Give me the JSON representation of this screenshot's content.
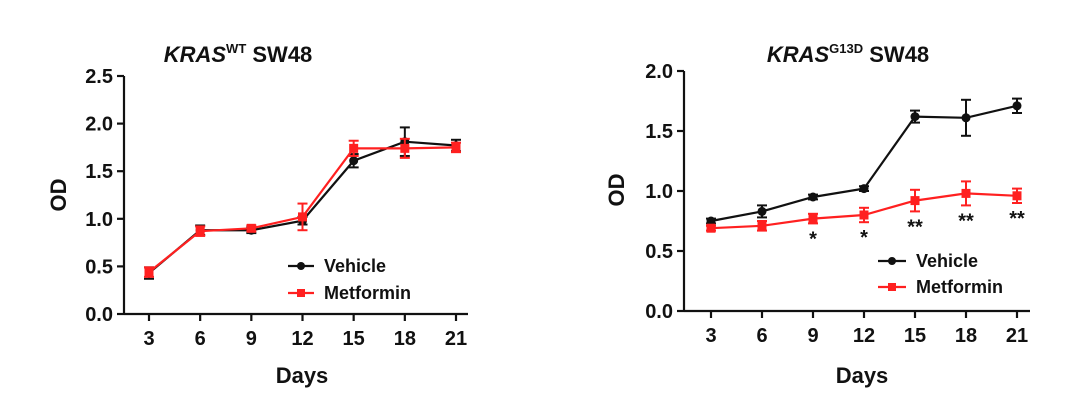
{
  "chart_data": [
    {
      "type": "line",
      "title": {
        "main": "KRAS",
        "sup": "WT",
        "rest": " SW48"
      },
      "xlabel": "Days",
      "ylabel": "OD",
      "x": [
        3,
        6,
        9,
        12,
        15,
        18,
        21
      ],
      "xticks": [
        "3",
        "6",
        "9",
        "12",
        "15",
        "18",
        "21"
      ],
      "ylim": [
        0,
        2.5
      ],
      "yticks": [
        "0.0",
        "0.5",
        "1.0",
        "1.5",
        "2.0",
        "2.5"
      ],
      "ytick_values": [
        0,
        0.5,
        1.0,
        1.5,
        2.0,
        2.5
      ],
      "grid": false,
      "legend_position": "lower-right",
      "series": [
        {
          "name": "Vehicle",
          "color": "#111111",
          "marker": "circle",
          "values": [
            0.43,
            0.88,
            0.88,
            0.98,
            1.61,
            1.81,
            1.77
          ],
          "error": [
            0.06,
            0.05,
            0.03,
            0.04,
            0.07,
            0.15,
            0.06
          ]
        },
        {
          "name": "Metformin",
          "color": "#ff2020",
          "marker": "square",
          "values": [
            0.44,
            0.87,
            0.9,
            1.02,
            1.74,
            1.74,
            1.75
          ],
          "error": [
            0.05,
            0.05,
            0.03,
            0.14,
            0.08,
            0.1,
            0.05
          ]
        }
      ],
      "annotations": []
    },
    {
      "type": "line",
      "title": {
        "main": "KRAS",
        "sup": "G13D",
        "rest": " SW48"
      },
      "xlabel": "Days",
      "ylabel": "OD",
      "x": [
        3,
        6,
        9,
        12,
        15,
        18,
        21
      ],
      "xticks": [
        "3",
        "6",
        "9",
        "12",
        "15",
        "18",
        "21"
      ],
      "ylim": [
        0,
        2.0
      ],
      "yticks": [
        "0.0",
        "0.5",
        "1.0",
        "1.5",
        "2.0"
      ],
      "ytick_values": [
        0,
        0.5,
        1.0,
        1.5,
        2.0
      ],
      "grid": false,
      "legend_position": "lower-right",
      "series": [
        {
          "name": "Vehicle",
          "color": "#111111",
          "marker": "circle",
          "values": [
            0.75,
            0.83,
            0.95,
            1.02,
            1.62,
            1.61,
            1.71
          ],
          "error": [
            0.02,
            0.05,
            0.02,
            0.02,
            0.05,
            0.15,
            0.06
          ]
        },
        {
          "name": "Metformin",
          "color": "#ff2020",
          "marker": "square",
          "values": [
            0.69,
            0.71,
            0.77,
            0.8,
            0.92,
            0.98,
            0.96
          ],
          "error": [
            0.02,
            0.04,
            0.04,
            0.06,
            0.09,
            0.1,
            0.06
          ]
        }
      ],
      "annotations": [
        {
          "x": 9,
          "text": "*"
        },
        {
          "x": 12,
          "text": "*"
        },
        {
          "x": 15,
          "text": "**"
        },
        {
          "x": 18,
          "text": "**"
        },
        {
          "x": 21,
          "text": "**"
        }
      ]
    }
  ]
}
